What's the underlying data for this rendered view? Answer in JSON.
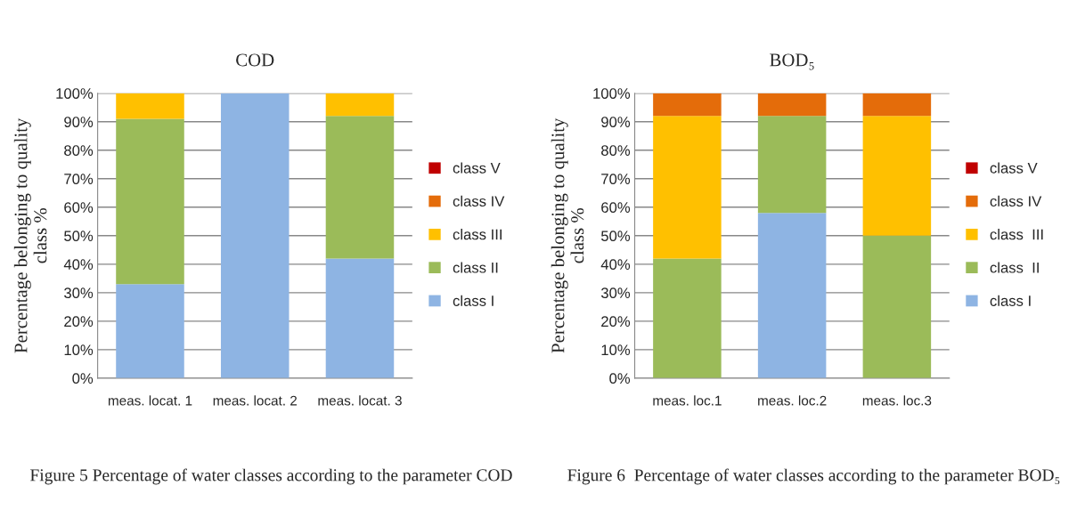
{
  "chart_data": [
    {
      "type": "bar",
      "title": "COD",
      "ylabel": "Percentage belonging to quality\nclass %",
      "stacked": true,
      "legend": "right",
      "grid": "y",
      "categories": [
        "meas. locat. 1",
        "meas. locat. 2",
        "meas. locat. 3"
      ],
      "ylim": [
        0,
        100
      ],
      "yticks": [
        {
          "value": 0,
          "label": "0%"
        },
        {
          "value": 10,
          "label": "10%"
        },
        {
          "value": 20,
          "label": "20%"
        },
        {
          "value": 30,
          "label": "30%"
        },
        {
          "value": 40,
          "label": "40%"
        },
        {
          "value": 50,
          "label": "50%"
        },
        {
          "value": 60,
          "label": "60%"
        },
        {
          "value": 70,
          "label": "70%"
        },
        {
          "value": 80,
          "label": "80%"
        },
        {
          "value": 90,
          "label": "90%"
        },
        {
          "value": 100,
          "label": "100%"
        }
      ],
      "series": [
        {
          "name": "class I",
          "color": "#8eb4e3",
          "values": [
            33,
            100,
            42
          ]
        },
        {
          "name": "class II",
          "color": "#9bbb59",
          "values": [
            58,
            null,
            50
          ]
        },
        {
          "name": "class III",
          "color": "#ffc000",
          "values": [
            9,
            null,
            8
          ]
        },
        {
          "name": "class IV",
          "color": "#e46c0a",
          "values": [
            null,
            null,
            null
          ]
        },
        {
          "name": "class V",
          "color": "#c00000",
          "values": [
            null,
            null,
            null
          ]
        }
      ],
      "annotations": [
        "Figure 5 Percentage of water classes according to the parameter COD"
      ]
    },
    {
      "type": "bar",
      "title": "BOD₅",
      "ylabel": "Percentage belonging to quality\nclass %",
      "stacked": true,
      "legend": "right",
      "grid": "y",
      "categories": [
        "meas. loc.1",
        "meas. loc.2",
        "meas. loc.3"
      ],
      "ylim": [
        0,
        100
      ],
      "yticks": [
        {
          "value": 0,
          "label": "0%"
        },
        {
          "value": 10,
          "label": "10%"
        },
        {
          "value": 20,
          "label": "20%"
        },
        {
          "value": 30,
          "label": "30%"
        },
        {
          "value": 40,
          "label": "40%"
        },
        {
          "value": 50,
          "label": "50%"
        },
        {
          "value": 60,
          "label": "60%"
        },
        {
          "value": 70,
          "label": "70%"
        },
        {
          "value": 80,
          "label": "80%"
        },
        {
          "value": 90,
          "label": "90%"
        },
        {
          "value": 100,
          "label": "100%"
        }
      ],
      "series": [
        {
          "name": "class I",
          "color": "#8eb4e3",
          "values": [
            null,
            58,
            null
          ]
        },
        {
          "name": "class  II",
          "color": "#9bbb59",
          "values": [
            42,
            34,
            50
          ]
        },
        {
          "name": "class  III",
          "color": "#ffc000",
          "values": [
            50,
            null,
            42
          ]
        },
        {
          "name": "class IV",
          "color": "#e46c0a",
          "values": [
            8,
            8,
            8
          ]
        },
        {
          "name": "class V",
          "color": "#c00000",
          "values": [
            null,
            null,
            null
          ]
        }
      ],
      "annotations": [
        "Figure 6  Percentage of water classes according to the parameter BOD₅"
      ]
    }
  ]
}
